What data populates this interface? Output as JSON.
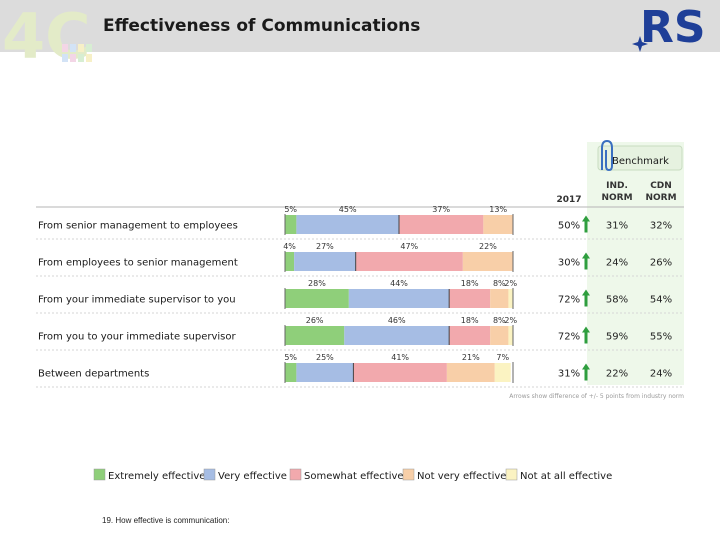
{
  "logo_left": "4C",
  "logo_right": "RS",
  "title": "Effectiveness of Communications",
  "footnote": "19. How effective is communication:",
  "benchmark_label": "Benchmark",
  "columns": {
    "year": "2017",
    "ind": [
      "IND.",
      "NORM"
    ],
    "cdn": [
      "CDN",
      "NORM"
    ]
  },
  "significance_note": "Arrows show difference of +/- 5 points from industry norm",
  "colors": {
    "extremely": "#8fcf7a",
    "very": "#a6bde4",
    "somewhat": "#f2a9ad",
    "not_very": "#f8cfa8",
    "not_at_all": "#fbf3c2",
    "arrow": "#2e9e3e",
    "benchmark_bg": "#eef8ea",
    "header_bg": "#dcdcdc",
    "rs_blue": "#1f3f98"
  },
  "chart_data": {
    "type": "bar",
    "orientation": "horizontal",
    "stacked": true,
    "xlim": [
      0,
      100
    ],
    "categories": [
      "From senior management to employees",
      "From employees to senior management",
      "From your immediate supervisor to you",
      "From you to your immediate supervisor",
      "Between departments"
    ],
    "series": [
      {
        "name": "Extremely effective",
        "key": "extremely",
        "values": [
          5,
          4,
          28,
          26,
          5
        ],
        "labels": [
          "5%",
          "4%",
          "28%",
          "26%",
          "5%"
        ]
      },
      {
        "name": "Very effective",
        "key": "very",
        "values": [
          45,
          27,
          44,
          46,
          25
        ],
        "labels": [
          "45%",
          "27%",
          "44%",
          "46%",
          "25%"
        ]
      },
      {
        "name": "Somewhat effective",
        "key": "somewhat",
        "values": [
          37,
          47,
          18,
          18,
          41
        ],
        "labels": [
          "37%",
          "47%",
          "18%",
          "18%",
          "41%"
        ]
      },
      {
        "name": "Not very effective",
        "key": "not_very",
        "values": [
          13,
          22,
          8,
          8,
          21
        ],
        "labels": [
          "13%",
          "22%",
          "8%",
          "8%",
          "21%"
        ]
      },
      {
        "name": "Not at all effective",
        "key": "not_at_all",
        "values": [
          0,
          0,
          2,
          2,
          7
        ],
        "labels": [
          "",
          "",
          "2%",
          "2%",
          "7%"
        ]
      }
    ],
    "table": {
      "year_2017": [
        "50%",
        "30%",
        "72%",
        "72%",
        "31%"
      ],
      "ind_norm": [
        "31%",
        "24%",
        "58%",
        "59%",
        "22%"
      ],
      "cdn_norm": [
        "32%",
        "26%",
        "54%",
        "55%",
        "24%"
      ],
      "arrow_up": [
        true,
        true,
        true,
        true,
        true
      ]
    }
  }
}
